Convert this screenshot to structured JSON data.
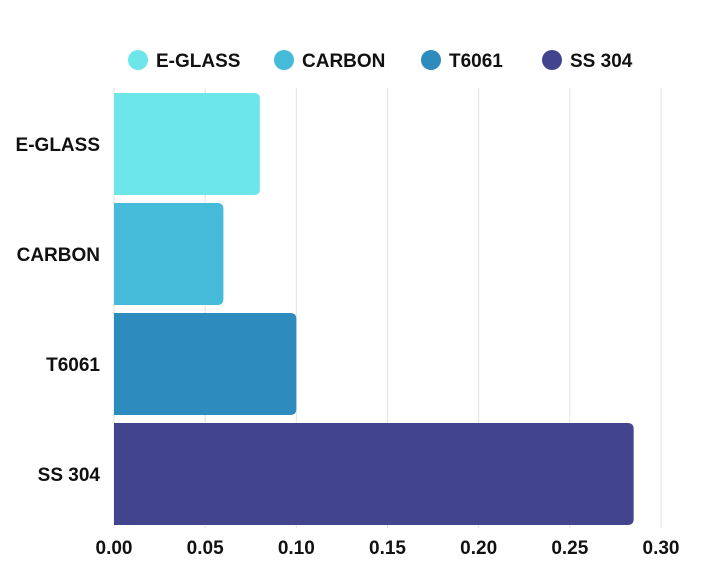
{
  "chart_data": {
    "type": "bar",
    "orientation": "horizontal",
    "categories": [
      "E-GLASS",
      "CARBON",
      "T6061",
      "SS 304"
    ],
    "values": [
      0.08,
      0.06,
      0.1,
      0.285
    ],
    "colors": [
      "#6de6ea",
      "#45bad9",
      "#2d8bbd",
      "#43448e"
    ],
    "legend": {
      "placement": "top",
      "entries": [
        "E-GLASS",
        "CARBON",
        "T6061",
        "SS 304"
      ]
    },
    "xlim": [
      0,
      0.3
    ],
    "x_ticks": [
      "0.00",
      "0.05",
      "0.10",
      "0.15",
      "0.20",
      "0.25",
      "0.30"
    ],
    "grid": true,
    "title": "",
    "xlabel": "",
    "ylabel": ""
  }
}
